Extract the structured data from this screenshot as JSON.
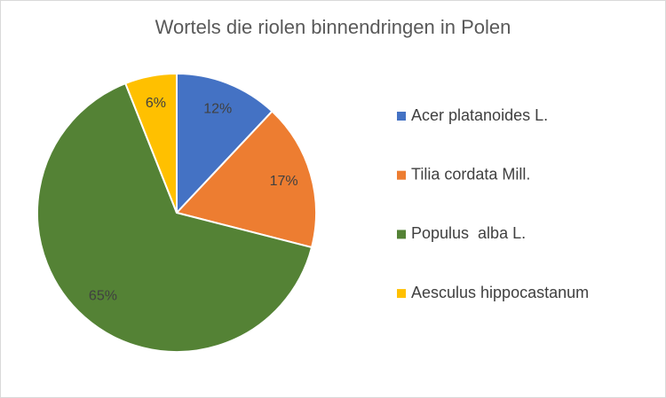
{
  "chart_data": {
    "type": "pie",
    "title": "Wortels die riolen binnendringen in Polen",
    "series": [
      {
        "name": "Acer platanoides L.",
        "color": "#4472c4"
      },
      {
        "name": "Tilia cordata Mill.",
        "color": "#ed7d31"
      },
      {
        "name": "Populus  alba L.",
        "color": "#548235"
      },
      {
        "name": "Aesculus hippocastanum",
        "color": "#ffc000"
      }
    ],
    "values": [
      12,
      17,
      65,
      6
    ],
    "value_labels": [
      "12%",
      "17%",
      "65%",
      "6%"
    ],
    "legend": "right"
  }
}
